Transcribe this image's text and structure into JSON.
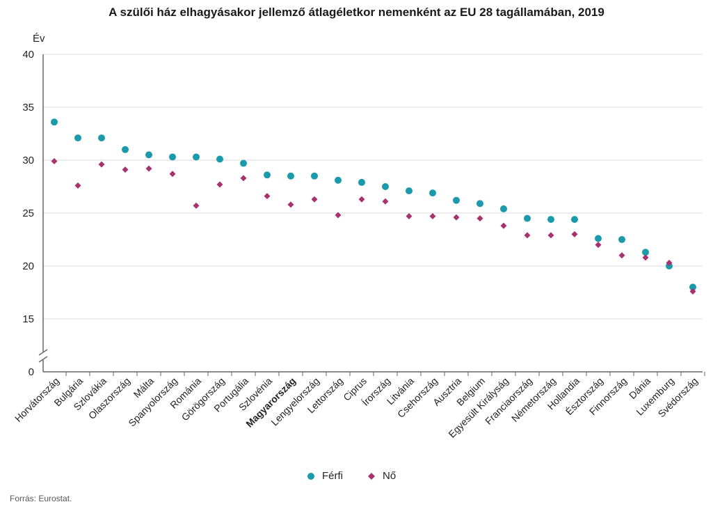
{
  "chart_data": {
    "type": "scatter",
    "title": "A szülői ház elhagyásakor jellemző átlagéletkor nemenként az EU 28 tagállamában, 2019",
    "ylabel": "Év",
    "xlabel": "",
    "ylim": [
      0,
      40
    ],
    "axis_break": [
      0,
      12.5
    ],
    "yticks": [
      0,
      15,
      20,
      25,
      30,
      35,
      40
    ],
    "grid": true,
    "legend_position": "bottom-center",
    "categories": [
      "Horvátország",
      "Bulgária",
      "Szlovákia",
      "Olaszország",
      "Málta",
      "Spanyolország",
      "Románia",
      "Görögország",
      "Portugália",
      "Szlovénia",
      "Magyarország",
      "Lengyelország",
      "Lettország",
      "Ciprus",
      "Írország",
      "Litvánia",
      "Csehország",
      "Ausztria",
      "Belgium",
      "Egyesült Királyság",
      "Franciaország",
      "Németország",
      "Hollandia",
      "Észtország",
      "Finnország",
      "Dánia",
      "Luxemburg",
      "Svédország"
    ],
    "highlight_category": "Magyarország",
    "series": [
      {
        "name": "Férfi",
        "marker": "circle",
        "color": "#1a9aaa",
        "values": [
          33.6,
          32.1,
          32.1,
          31.0,
          30.5,
          30.3,
          30.3,
          30.1,
          29.7,
          28.6,
          28.5,
          28.5,
          28.1,
          27.9,
          27.5,
          27.1,
          26.9,
          26.2,
          25.9,
          25.4,
          24.5,
          24.4,
          24.4,
          22.6,
          22.5,
          21.3,
          20.0,
          18.0
        ]
      },
      {
        "name": "Nő",
        "marker": "diamond",
        "color": "#a8326e",
        "values": [
          29.9,
          27.6,
          29.6,
          29.1,
          29.2,
          28.7,
          25.7,
          27.7,
          28.3,
          26.6,
          25.8,
          26.3,
          24.8,
          26.3,
          26.1,
          24.7,
          24.7,
          24.6,
          24.5,
          23.8,
          22.9,
          22.9,
          23.0,
          22.0,
          21.0,
          20.8,
          20.3,
          17.6
        ]
      }
    ]
  },
  "source_note": "Forrás: Eurostat.",
  "colors": {
    "grid": "#d9d9d9",
    "axis": "#666666",
    "text": "#222222"
  }
}
